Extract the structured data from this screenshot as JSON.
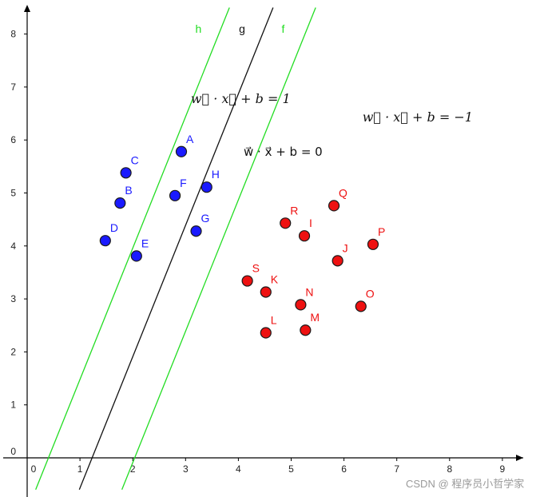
{
  "chart_data": {
    "type": "scatter",
    "xlim": [
      -0.15,
      9.35
    ],
    "ylim": [
      -0.6,
      8.5
    ],
    "x_ticks": [
      0,
      1,
      2,
      3,
      4,
      5,
      6,
      7,
      8,
      9
    ],
    "y_ticks": [
      0,
      1,
      2,
      3,
      4,
      5,
      6,
      7,
      8
    ],
    "grid": false,
    "series": [
      {
        "color": "#1a1aff",
        "points": [
          {
            "label": "A",
            "x": 2.92,
            "y": 5.78
          },
          {
            "label": "C",
            "x": 1.87,
            "y": 5.38
          },
          {
            "label": "B",
            "x": 1.76,
            "y": 4.81
          },
          {
            "label": "F",
            "x": 2.8,
            "y": 4.95
          },
          {
            "label": "H",
            "x": 3.4,
            "y": 5.11
          },
          {
            "label": "G",
            "x": 3.2,
            "y": 4.28
          },
          {
            "label": "D",
            "x": 1.48,
            "y": 4.1
          },
          {
            "label": "E",
            "x": 2.07,
            "y": 3.81
          }
        ]
      },
      {
        "color": "#ee1111",
        "points": [
          {
            "label": "Q",
            "x": 5.81,
            "y": 4.76
          },
          {
            "label": "R",
            "x": 4.89,
            "y": 4.43
          },
          {
            "label": "I",
            "x": 5.25,
            "y": 4.19
          },
          {
            "label": "P",
            "x": 6.55,
            "y": 4.03
          },
          {
            "label": "J",
            "x": 5.88,
            "y": 3.72
          },
          {
            "label": "S",
            "x": 4.17,
            "y": 3.34
          },
          {
            "label": "K",
            "x": 4.52,
            "y": 3.13
          },
          {
            "label": "N",
            "x": 5.18,
            "y": 2.89
          },
          {
            "label": "O",
            "x": 6.32,
            "y": 2.86
          },
          {
            "label": "L",
            "x": 4.52,
            "y": 2.36
          },
          {
            "label": "M",
            "x": 5.27,
            "y": 2.41
          }
        ]
      }
    ],
    "lines": [
      {
        "name": "h",
        "color": "#22dd22",
        "slope": 2.48,
        "intercept": -1.0
      },
      {
        "name": "g",
        "color": "#111111",
        "slope": 2.48,
        "intercept": -3.05
      },
      {
        "name": "f",
        "color": "#22dd22",
        "slope": 2.48,
        "intercept": -5.05
      }
    ],
    "annotations": [
      {
        "text": "w⃗ · x⃗ + b = 1",
        "x": 3.1,
        "y": 6.7
      },
      {
        "text": "w⃗ · x⃗ + b = 0",
        "x": 4.1,
        "y": 5.7
      },
      {
        "text": "w⃗ · x⃗ + b = −1",
        "x": 6.35,
        "y": 6.35
      }
    ]
  },
  "watermark": "CSDN @ 程序员小哲学家"
}
